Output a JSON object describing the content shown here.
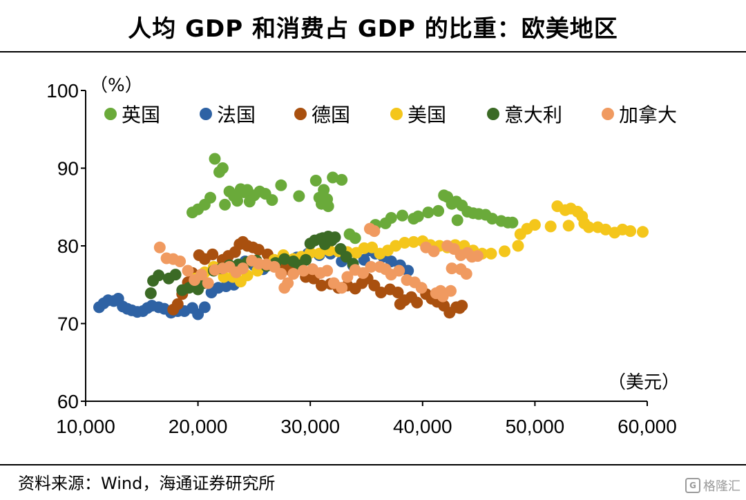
{
  "title": "人均 GDP 和消费占 GDP 的比重：欧美地区",
  "source": "资料来源：Wind，海通证券研究所",
  "watermark": "格隆汇",
  "chart_data": {
    "type": "scatter",
    "ylabel": "（%）",
    "xlabel": "（美元）",
    "xlim": [
      10000,
      60000
    ],
    "ylim": [
      60,
      100
    ],
    "xticks": [
      10000,
      20000,
      30000,
      40000,
      50000,
      60000
    ],
    "xtick_labels": [
      "10,000",
      "20,000",
      "30,000",
      "40,000",
      "50,000",
      "60,000"
    ],
    "yticks": [
      60,
      70,
      80,
      90,
      100
    ],
    "ytick_labels": [
      "60",
      "70",
      "80",
      "90",
      "100"
    ],
    "grid": false,
    "legend_position": "top",
    "series": [
      {
        "name": "英国",
        "color": "#6aaa3a",
        "points": [
          [
            19500,
            84.3
          ],
          [
            20000,
            84.7
          ],
          [
            20600,
            85.3
          ],
          [
            21100,
            86.2
          ],
          [
            21500,
            91.2
          ],
          [
            21900,
            89.5
          ],
          [
            22200,
            90.0
          ],
          [
            22400,
            85.3
          ],
          [
            22800,
            87.0
          ],
          [
            23200,
            86.4
          ],
          [
            23500,
            85.8
          ],
          [
            23800,
            87.3
          ],
          [
            24100,
            86.9
          ],
          [
            24400,
            87.2
          ],
          [
            24600,
            85.7
          ],
          [
            25000,
            86.5
          ],
          [
            25500,
            87.0
          ],
          [
            26000,
            86.7
          ],
          [
            26600,
            85.9
          ],
          [
            27400,
            87.8
          ],
          [
            29000,
            86.4
          ],
          [
            30500,
            88.4
          ],
          [
            30800,
            86.2
          ],
          [
            31000,
            85.4
          ],
          [
            31200,
            87.2
          ],
          [
            31500,
            86.0
          ],
          [
            31600,
            85.1
          ],
          [
            32000,
            88.8
          ],
          [
            32800,
            88.5
          ],
          [
            33500,
            81.5
          ],
          [
            34000,
            81.0
          ],
          [
            35800,
            82.7
          ],
          [
            36700,
            82.9
          ],
          [
            37200,
            83.6
          ],
          [
            38200,
            83.9
          ],
          [
            39200,
            83.5
          ],
          [
            39600,
            83.8
          ],
          [
            40500,
            84.3
          ],
          [
            41400,
            84.5
          ],
          [
            41900,
            86.5
          ],
          [
            42200,
            86.3
          ],
          [
            42600,
            85.4
          ],
          [
            43000,
            85.7
          ],
          [
            43100,
            83.3
          ],
          [
            43500,
            85.2
          ],
          [
            44000,
            84.4
          ],
          [
            44500,
            84.2
          ],
          [
            45000,
            84.1
          ],
          [
            45600,
            84.0
          ],
          [
            46200,
            83.5
          ],
          [
            47000,
            83.2
          ],
          [
            47600,
            83.0
          ],
          [
            48000,
            83.0
          ]
        ]
      },
      {
        "name": "法国",
        "color": "#2e62a4",
        "points": [
          [
            11200,
            72.1
          ],
          [
            11600,
            72.6
          ],
          [
            12000,
            73.0
          ],
          [
            12500,
            72.9
          ],
          [
            12900,
            73.2
          ],
          [
            13300,
            72.2
          ],
          [
            13700,
            71.9
          ],
          [
            14100,
            71.7
          ],
          [
            14600,
            71.5
          ],
          [
            15100,
            71.6
          ],
          [
            15500,
            72.0
          ],
          [
            15900,
            72.3
          ],
          [
            16500,
            72.1
          ],
          [
            17000,
            71.9
          ],
          [
            17600,
            71.4
          ],
          [
            18200,
            71.6
          ],
          [
            18800,
            71.6
          ],
          [
            19500,
            72.0
          ],
          [
            20000,
            71.2
          ],
          [
            20600,
            72.1
          ],
          [
            21200,
            74.0
          ],
          [
            21800,
            74.6
          ],
          [
            22500,
            74.8
          ],
          [
            23200,
            75.0
          ],
          [
            24200,
            78.0
          ],
          [
            25000,
            77.5
          ],
          [
            25800,
            77.0
          ],
          [
            26800,
            77.4
          ],
          [
            27800,
            77.8
          ],
          [
            28800,
            78.5
          ],
          [
            29800,
            79.0
          ],
          [
            30800,
            78.8
          ],
          [
            31800,
            79.0
          ],
          [
            32800,
            78.0
          ],
          [
            33800,
            77.5
          ],
          [
            34800,
            78.2
          ],
          [
            35200,
            79.4
          ],
          [
            35800,
            79.0
          ],
          [
            36500,
            78.6
          ],
          [
            37200,
            78.0
          ],
          [
            38000,
            77.5
          ],
          [
            38700,
            76.8
          ]
        ]
      },
      {
        "name": "德国",
        "color": "#a9500f",
        "points": [
          [
            17800,
            71.8
          ],
          [
            18200,
            72.5
          ],
          [
            18600,
            73.8
          ],
          [
            19100,
            75.3
          ],
          [
            19500,
            76.5
          ],
          [
            20100,
            78.8
          ],
          [
            20600,
            78.3
          ],
          [
            21300,
            78.9
          ],
          [
            22200,
            78.2
          ],
          [
            22700,
            78.7
          ],
          [
            23300,
            79.2
          ],
          [
            23700,
            80.2
          ],
          [
            24000,
            80.5
          ],
          [
            24400,
            80.0
          ],
          [
            24900,
            79.8
          ],
          [
            25400,
            79.5
          ],
          [
            26200,
            78.9
          ],
          [
            27000,
            77.5
          ],
          [
            27700,
            77.1
          ],
          [
            28300,
            76.8
          ],
          [
            28900,
            77.5
          ],
          [
            29600,
            76.0
          ],
          [
            30300,
            75.8
          ],
          [
            31000,
            74.9
          ],
          [
            31800,
            75.1
          ],
          [
            32500,
            74.6
          ],
          [
            33300,
            74.9
          ],
          [
            34000,
            74.5
          ],
          [
            34600,
            75.2
          ],
          [
            35100,
            75.8
          ],
          [
            35700,
            74.9
          ],
          [
            36300,
            74.0
          ],
          [
            37100,
            74.4
          ],
          [
            37800,
            74.0
          ],
          [
            38000,
            72.5
          ],
          [
            38400,
            73.0
          ],
          [
            39000,
            73.4
          ],
          [
            39500,
            72.7
          ],
          [
            40300,
            73.8
          ],
          [
            40800,
            73.2
          ],
          [
            41300,
            72.8
          ],
          [
            41900,
            72.3
          ],
          [
            42400,
            71.4
          ],
          [
            43000,
            72.1
          ],
          [
            43300,
            72.0
          ],
          [
            43500,
            72.3
          ]
        ]
      },
      {
        "name": "美国",
        "color": "#f4c61b",
        "points": [
          [
            19800,
            75.8
          ],
          [
            20600,
            76.6
          ],
          [
            21400,
            77.3
          ],
          [
            22300,
            76.0
          ],
          [
            23100,
            76.0
          ],
          [
            23800,
            75.4
          ],
          [
            24400,
            76.2
          ],
          [
            25300,
            76.8
          ],
          [
            26100,
            77.6
          ],
          [
            26800,
            78.2
          ],
          [
            27600,
            78.8
          ],
          [
            28500,
            78.3
          ],
          [
            29200,
            78.6
          ],
          [
            30000,
            79.1
          ],
          [
            30800,
            79.0
          ],
          [
            31700,
            79.4
          ],
          [
            32500,
            79.3
          ],
          [
            33300,
            79.2
          ],
          [
            34100,
            79.1
          ],
          [
            34800,
            79.7
          ],
          [
            35500,
            79.8
          ],
          [
            36200,
            79.0
          ],
          [
            36900,
            79.4
          ],
          [
            37600,
            80.0
          ],
          [
            38400,
            80.4
          ],
          [
            39200,
            80.5
          ],
          [
            40000,
            80.6
          ],
          [
            40700,
            80.1
          ],
          [
            41500,
            80.0
          ],
          [
            42200,
            79.8
          ],
          [
            42900,
            80.1
          ],
          [
            43700,
            80.0
          ],
          [
            44500,
            79.4
          ],
          [
            45300,
            79.0
          ],
          [
            46100,
            79.0
          ],
          [
            47300,
            79.3
          ],
          [
            48500,
            80.0
          ],
          [
            48700,
            81.5
          ],
          [
            49300,
            82.2
          ],
          [
            50000,
            82.7
          ],
          [
            51400,
            82.5
          ],
          [
            52000,
            85.1
          ],
          [
            52700,
            84.6
          ],
          [
            53000,
            82.6
          ],
          [
            53200,
            84.8
          ],
          [
            53800,
            84.4
          ],
          [
            54200,
            83.8
          ],
          [
            54400,
            82.9
          ],
          [
            54800,
            82.4
          ],
          [
            55600,
            82.4
          ],
          [
            56300,
            82.1
          ],
          [
            57100,
            81.7
          ],
          [
            57800,
            82.1
          ],
          [
            58500,
            81.9
          ],
          [
            59600,
            81.8
          ]
        ]
      },
      {
        "name": "意大利",
        "color": "#3b6a25",
        "points": [
          [
            15800,
            73.9
          ],
          [
            16000,
            75.5
          ],
          [
            16500,
            76.2
          ],
          [
            17400,
            75.8
          ],
          [
            18000,
            76.3
          ],
          [
            18600,
            74.3
          ],
          [
            19200,
            74.6
          ],
          [
            20000,
            74.4
          ],
          [
            20500,
            75.2
          ],
          [
            21400,
            76.8
          ],
          [
            22100,
            77.1
          ],
          [
            22800,
            77.5
          ],
          [
            23600,
            77.6
          ],
          [
            24400,
            77.9
          ],
          [
            25200,
            78.1
          ],
          [
            26100,
            77.4
          ],
          [
            26900,
            77.8
          ],
          [
            27700,
            78.3
          ],
          [
            28500,
            78.0
          ],
          [
            29000,
            77.5
          ],
          [
            29600,
            78.2
          ],
          [
            30000,
            80.3
          ],
          [
            30400,
            80.7
          ],
          [
            30900,
            80.9
          ],
          [
            31100,
            81.0
          ],
          [
            31300,
            80.2
          ],
          [
            31600,
            81.2
          ],
          [
            31900,
            80.7
          ],
          [
            32200,
            81.1
          ],
          [
            32700,
            79.6
          ],
          [
            33200,
            78.6
          ],
          [
            33800,
            77.7
          ]
        ]
      },
      {
        "name": "加拿大",
        "color": "#f09a60",
        "points": [
          [
            16600,
            79.8
          ],
          [
            17200,
            78.4
          ],
          [
            17800,
            78.3
          ],
          [
            18400,
            78.0
          ],
          [
            19100,
            76.8
          ],
          [
            19700,
            75.6
          ],
          [
            20300,
            76.3
          ],
          [
            20900,
            75.2
          ],
          [
            21500,
            76.9
          ],
          [
            22200,
            77.1
          ],
          [
            22800,
            77.3
          ],
          [
            23400,
            76.6
          ],
          [
            24000,
            77.1
          ],
          [
            24800,
            78.1
          ],
          [
            25400,
            77.7
          ],
          [
            26100,
            77.6
          ],
          [
            26800,
            77.3
          ],
          [
            27400,
            76.4
          ],
          [
            27700,
            74.6
          ],
          [
            28000,
            75.2
          ],
          [
            28500,
            76.4
          ],
          [
            29400,
            76.8
          ],
          [
            30200,
            77.0
          ],
          [
            30900,
            76.5
          ],
          [
            31500,
            76.8
          ],
          [
            32100,
            75.2
          ],
          [
            32800,
            74.6
          ],
          [
            33300,
            76.0
          ],
          [
            34000,
            76.9
          ],
          [
            34700,
            76.5
          ],
          [
            35400,
            77.3
          ],
          [
            35300,
            82.2
          ],
          [
            35700,
            81.9
          ],
          [
            36200,
            77.3
          ],
          [
            36700,
            77.0
          ],
          [
            37200,
            76.3
          ],
          [
            37900,
            76.8
          ],
          [
            38600,
            75.6
          ],
          [
            39300,
            75.3
          ],
          [
            39900,
            74.6
          ],
          [
            40300,
            79.8
          ],
          [
            41000,
            79.3
          ],
          [
            41600,
            74.2
          ],
          [
            42200,
            80.0
          ],
          [
            42800,
            79.6
          ],
          [
            43400,
            78.8
          ],
          [
            44000,
            79.1
          ],
          [
            44400,
            78.6
          ],
          [
            44900,
            78.7
          ],
          [
            42600,
            77.1
          ],
          [
            43400,
            77.0
          ],
          [
            43900,
            76.4
          ],
          [
            41200,
            73.9
          ],
          [
            41800,
            73.5
          ],
          [
            42500,
            74.2
          ]
        ]
      }
    ]
  }
}
